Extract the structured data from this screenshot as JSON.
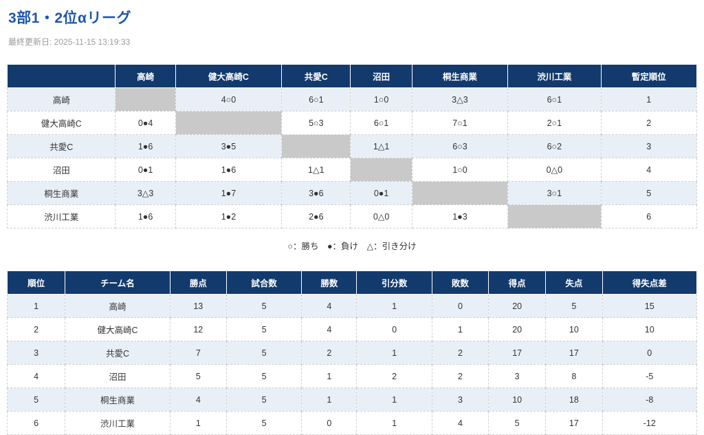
{
  "page": {
    "title": "3部1・2位αリーグ",
    "last_updated": "最終更新日: 2025-11-15 13:19:33"
  },
  "colors": {
    "title_blue": "#1c56ad",
    "header_navy": "#123a6d",
    "stripe_blue": "#e8eff7",
    "self_cell_gray": "#c9c9c9",
    "muted_gray": "#9b9b9b"
  },
  "matrix_table": {
    "corner_label": "",
    "columns": [
      "高崎",
      "健大高崎C",
      "共愛C",
      "沼田",
      "桐生商業",
      "渋川工業",
      "暫定順位"
    ],
    "rows": [
      {
        "team": "高崎",
        "results": [
          null,
          "4○0",
          "6○1",
          "1○0",
          "3△3",
          "6○1"
        ],
        "rank": "1"
      },
      {
        "team": "健大高崎C",
        "results": [
          "0●4",
          null,
          "5○3",
          "6○1",
          "7○1",
          "2○1"
        ],
        "rank": "2"
      },
      {
        "team": "共愛C",
        "results": [
          "1●6",
          "3●5",
          null,
          "1△1",
          "6○3",
          "6○2"
        ],
        "rank": "3"
      },
      {
        "team": "沼田",
        "results": [
          "0●1",
          "1●6",
          "1△1",
          null,
          "1○0",
          "0△0"
        ],
        "rank": "4"
      },
      {
        "team": "桐生商業",
        "results": [
          "3△3",
          "1●7",
          "3●6",
          "0●1",
          null,
          "3○1"
        ],
        "rank": "5"
      },
      {
        "team": "渋川工業",
        "results": [
          "1●6",
          "1●2",
          "2●6",
          "0△0",
          "1●3",
          null
        ],
        "rank": "6"
      }
    ],
    "col_widths": [
      "15.7%",
      "8.7%",
      "15.4%",
      "10.0%",
      "8.9%",
      "13.9%",
      "13.5%",
      "13.9%"
    ]
  },
  "legend": {
    "text": "○：勝ち　●：負け　△：引き分け"
  },
  "standings_table": {
    "columns": [
      "順位",
      "チーム名",
      "勝点",
      "試合数",
      "勝数",
      "引分数",
      "敗数",
      "得点",
      "失点",
      "得失点差"
    ],
    "rows": [
      [
        "1",
        "高崎",
        "13",
        "5",
        "4",
        "1",
        "0",
        "20",
        "5",
        "15"
      ],
      [
        "2",
        "健大高崎C",
        "12",
        "5",
        "4",
        "0",
        "1",
        "20",
        "10",
        "10"
      ],
      [
        "3",
        "共愛C",
        "7",
        "5",
        "2",
        "1",
        "2",
        "17",
        "17",
        "0"
      ],
      [
        "4",
        "沼田",
        "5",
        "5",
        "1",
        "2",
        "2",
        "3",
        "8",
        "-5"
      ],
      [
        "5",
        "桐生商業",
        "4",
        "5",
        "1",
        "1",
        "3",
        "10",
        "18",
        "-8"
      ],
      [
        "6",
        "渋川工業",
        "1",
        "5",
        "0",
        "1",
        "4",
        "5",
        "17",
        "-12"
      ]
    ],
    "col_widths": [
      "8.4%",
      "15.2%",
      "8.2%",
      "10.9%",
      "8.0%",
      "10.9%",
      "8.2%",
      "8.3%",
      "8.2%",
      "13.7%"
    ]
  }
}
